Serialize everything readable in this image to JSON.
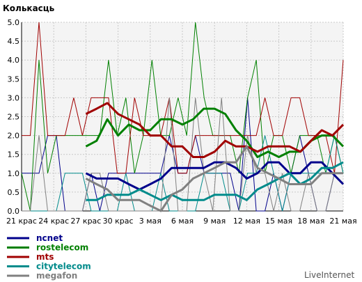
{
  "chart_data": {
    "type": "line",
    "title": "Колькасць",
    "branding": "LiveInternet",
    "ylim": [
      0,
      5
    ],
    "yticks": [
      "0.0",
      "0.5",
      "1.0",
      "1.5",
      "2.0",
      "2.5",
      "3.0",
      "3.5",
      "4.0",
      "4.5",
      "5.0"
    ],
    "xtick_labels": [
      "21 крас",
      "24 крас",
      "27 крас",
      "30 крас",
      "3 мая",
      "6 мая",
      "9 мая",
      "12 мая",
      "15 мая",
      "18 мая",
      "21 мая"
    ],
    "days": 31,
    "grid": true,
    "legend_position": "bottom-left",
    "series": [
      {
        "name": "ncnet",
        "color": "#00008b",
        "style": "thin",
        "values": [
          1,
          1,
          1,
          2,
          2,
          0,
          0,
          0,
          1,
          0,
          1,
          1,
          1,
          1,
          1,
          1,
          1,
          2,
          1,
          1,
          2,
          1,
          1,
          1,
          1,
          0,
          3,
          0,
          0,
          1,
          0,
          1,
          2,
          1,
          0,
          0,
          1,
          1
        ]
      },
      {
        "name": "rostelecom",
        "color": "#008000",
        "style": "thin",
        "values": [
          1,
          0,
          4,
          1,
          2,
          2,
          2,
          2,
          2,
          2,
          4,
          2,
          3,
          1,
          2,
          4,
          2,
          2,
          3,
          2,
          5,
          3,
          2,
          2,
          2,
          1,
          3,
          4,
          1,
          2,
          2,
          1,
          2,
          2,
          2,
          1,
          2,
          1
        ]
      },
      {
        "name": "mts",
        "color": "#a00000",
        "style": "thin",
        "values": [
          2,
          2,
          5,
          2,
          2,
          2,
          3,
          2,
          3,
          3,
          3,
          1,
          1,
          3,
          2,
          2,
          2,
          3,
          1,
          1,
          2,
          2,
          2,
          2,
          2,
          2,
          2,
          2,
          3,
          2,
          2,
          3,
          3,
          2,
          2,
          2,
          1,
          4
        ]
      },
      {
        "name": "citytelecom",
        "color": "#008b8b",
        "style": "thin",
        "values": [
          0,
          0,
          0,
          0,
          0,
          1,
          1,
          1,
          0,
          0,
          0,
          0,
          1,
          0,
          0,
          0,
          1,
          0,
          0,
          0,
          0,
          1,
          1,
          1,
          0,
          0,
          1,
          1,
          2,
          1,
          0,
          1,
          1,
          1,
          1,
          1,
          2,
          1
        ]
      },
      {
        "name": "megafon",
        "color": "#808080",
        "style": "thin",
        "values": [
          0,
          0,
          2,
          0,
          0,
          0,
          0,
          0,
          1,
          1,
          0,
          0,
          0,
          0,
          0,
          0,
          0,
          3,
          0,
          0,
          3,
          1,
          0,
          3,
          0,
          0,
          2,
          1,
          1,
          0,
          1,
          0,
          0,
          1,
          0,
          0,
          1,
          1
        ]
      }
    ],
    "moving_averages": [
      {
        "name": "ncnet",
        "color": "#00008b",
        "values": [
          1.0,
          0.86,
          0.86,
          0.86,
          0.71,
          0.57,
          0.71,
          0.86,
          1.14,
          1.14,
          1.14,
          1.14,
          1.29,
          1.29,
          1.14,
          0.86,
          1.0,
          1.29,
          1.29,
          1.0,
          1.0,
          1.29,
          1.29,
          1.0,
          0.71
        ]
      },
      {
        "name": "rostelecom",
        "color": "#008000",
        "values": [
          1.71,
          1.86,
          2.43,
          2.0,
          2.29,
          2.14,
          2.14,
          2.43,
          2.43,
          2.29,
          2.43,
          2.71,
          2.71,
          2.57,
          2.14,
          1.86,
          1.43,
          1.57,
          1.43,
          1.57,
          1.57,
          1.86,
          2.0,
          2.0,
          1.71
        ]
      },
      {
        "name": "mts",
        "color": "#a00000",
        "values": [
          2.57,
          2.71,
          2.86,
          2.57,
          2.43,
          2.29,
          2.0,
          2.0,
          1.71,
          1.71,
          1.43,
          1.43,
          1.57,
          1.86,
          1.71,
          1.71,
          1.57,
          1.71,
          1.71,
          1.71,
          1.57,
          1.86,
          2.14,
          2.0,
          2.29
        ]
      },
      {
        "name": "citytelecom",
        "color": "#008b8b",
        "values": [
          0.29,
          0.29,
          0.43,
          0.43,
          0.43,
          0.57,
          0.43,
          0.29,
          0.43,
          0.29,
          0.29,
          0.29,
          0.43,
          0.43,
          0.43,
          0.29,
          0.57,
          0.71,
          0.86,
          1.0,
          0.71,
          0.86,
          1.14,
          1.14,
          1.29
        ]
      },
      {
        "name": "megafon",
        "color": "#808080",
        "values": [
          0.86,
          0.71,
          0.57,
          0.29,
          0.29,
          0.29,
          0.14,
          0.0,
          0.43,
          0.57,
          0.86,
          1.0,
          1.14,
          1.29,
          1.29,
          1.71,
          1.14,
          1.0,
          0.86,
          0.71,
          0.71,
          0.71,
          1.0,
          1.0,
          1.0
        ]
      }
    ]
  }
}
